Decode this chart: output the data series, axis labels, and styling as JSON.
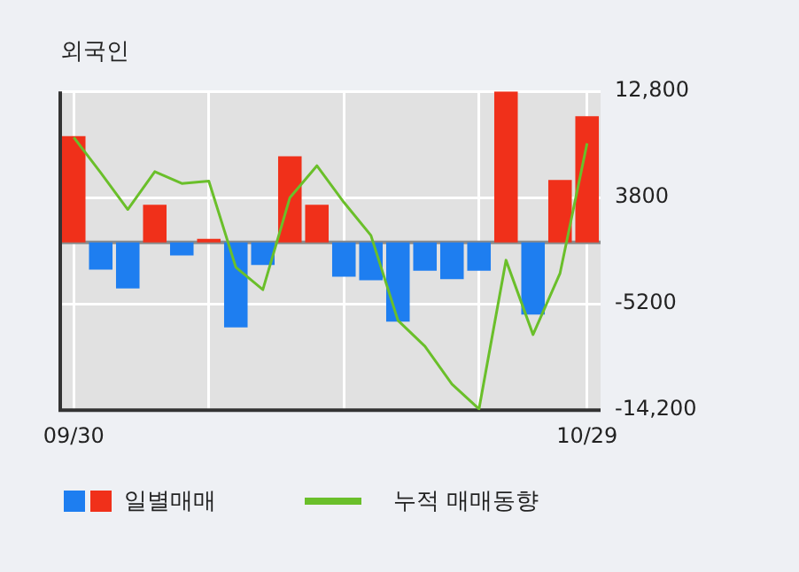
{
  "chart_data": {
    "type": "bar",
    "title": "외국인",
    "categories": [
      "09/30",
      null,
      null,
      null,
      null,
      null,
      null,
      null,
      null,
      null,
      null,
      null,
      null,
      null,
      null,
      null,
      null,
      null,
      null,
      "10/29"
    ],
    "series": [
      {
        "name": "일별매매",
        "colors": [
          "#f0301a",
          "#1e7ef0",
          "#1e7ef0",
          "#f0301a",
          "#1e7ef0",
          "#f0301a",
          "#1e7ef0",
          "#1e7ef0",
          "#f0301a",
          "#f0301a",
          "#1e7ef0",
          "#1e7ef0",
          "#1e7ef0",
          "#1e7ef0",
          "#1e7ef0",
          "#1e7ef0",
          "#f0301a",
          "#1e7ef0",
          "#f0301a",
          "#f0301a"
        ],
        "values": [
          9000,
          -2300,
          -3900,
          3200,
          -1100,
          300,
          -7200,
          -1900,
          7300,
          3200,
          -2900,
          -3200,
          -6700,
          -2400,
          -3100,
          -2400,
          12800,
          -6100,
          5300,
          10700
        ]
      },
      {
        "name": "누적 매매동향",
        "type": "line",
        "color": "#6abf2a",
        "values": [
          8900,
          5900,
          2800,
          6000,
          5000,
          5200,
          -2100,
          -4000,
          3800,
          6500,
          3400,
          600,
          -6600,
          -8800,
          -12000,
          -14100,
          -1500,
          -7800,
          -2600,
          8400
        ]
      }
    ],
    "ylim": [
      -14200,
      12800
    ],
    "yticks": [
      {
        "value": 12800,
        "label": "12,800"
      },
      3800,
      -5200,
      {
        "value": -14200,
        "label": "-14,200"
      }
    ],
    "ref_lines": [
      {
        "axis": "y",
        "value": 0,
        "color": "#8a8a8a"
      }
    ],
    "grid": true,
    "legend": "bottom"
  }
}
